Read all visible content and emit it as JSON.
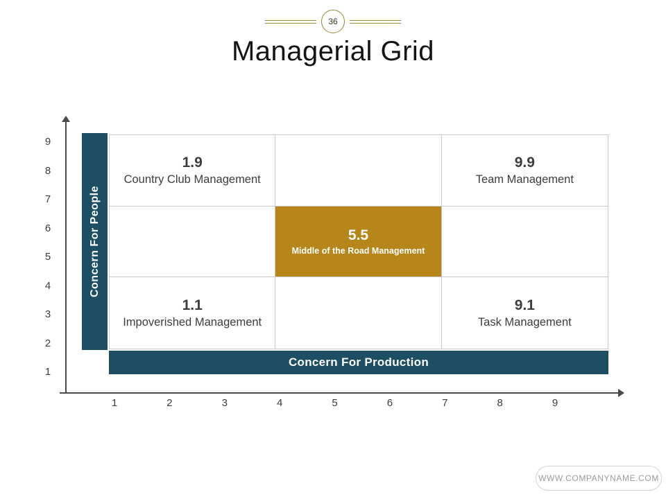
{
  "slide": {
    "page_number": "36",
    "title": "Managerial Grid",
    "footer": "WWW.COMPANYNAME.COM"
  },
  "chart": {
    "type": "matrix",
    "y_axis_label": "Concern For People",
    "x_axis_label": "Concern For Production",
    "y_ticks": [
      "9",
      "8",
      "7",
      "6",
      "5",
      "4",
      "3",
      "2",
      "1"
    ],
    "x_ticks": [
      "1",
      "2",
      "3",
      "4",
      "5",
      "6",
      "7",
      "8",
      "9"
    ],
    "cells": {
      "top_left": {
        "score": "1.9",
        "label": "Country Club Management"
      },
      "top_right": {
        "score": "9.9",
        "label": "Team Management"
      },
      "center": {
        "score": "5.5",
        "label": "Middle of the Road Management",
        "highlighted": true
      },
      "bottom_left": {
        "score": "1.1",
        "label": "Impoverished Management"
      },
      "bottom_right": {
        "score": "9.1",
        "label": "Task Management"
      }
    }
  },
  "theme": {
    "teal": "#1e4e63",
    "gold": "#b6861a",
    "ornament_gold": "#9a8732",
    "grid_line": "#c9c9c9",
    "text_dark": "#3d3d3d",
    "footer_gray": "#9b9b9b"
  }
}
